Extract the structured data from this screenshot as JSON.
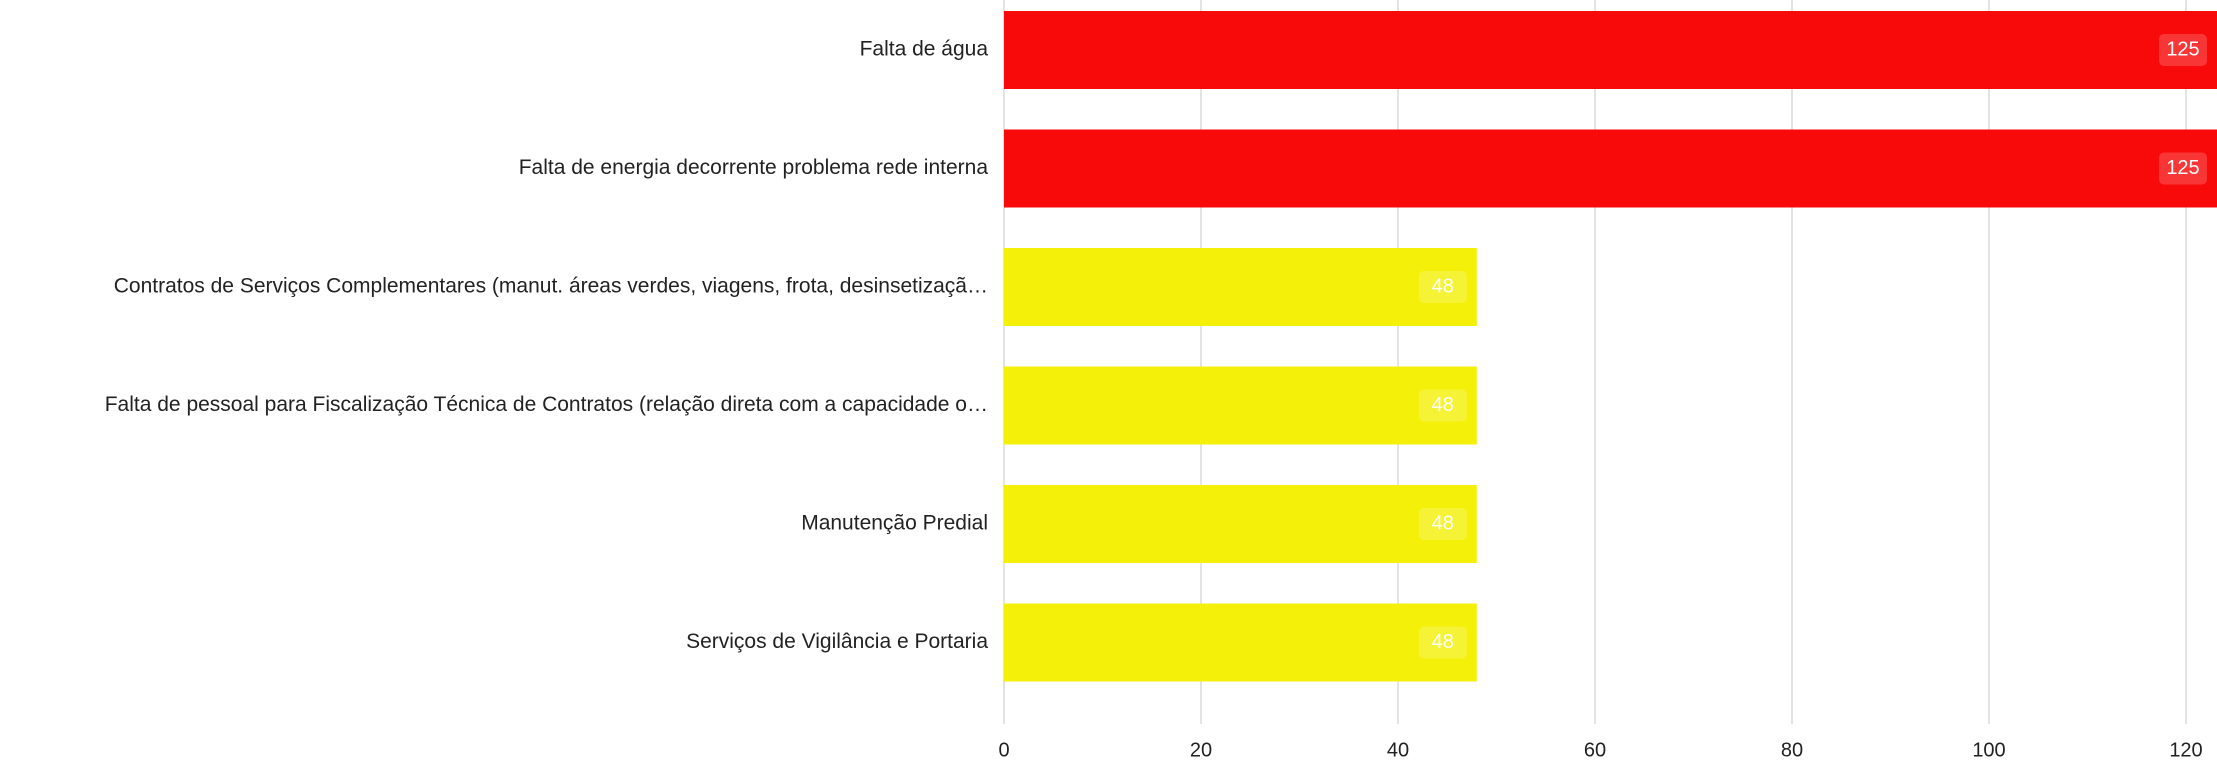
{
  "chart_data": {
    "type": "bar",
    "orientation": "horizontal",
    "categories": [
      "Falta de água",
      "Falta de energia decorrente problema rede interna",
      "Contratos de Serviços Complementares (manut. áreas verdes, viagens, frota, desinsetizaçã…",
      "Falta de pessoal para Fiscalização Técnica de Contratos (relação direta com a capacidade o…",
      "Manutenção Predial",
      "Serviços de Vigilância e Portaria"
    ],
    "values": [
      125,
      125,
      48,
      48,
      48,
      48
    ],
    "colors": [
      "#f80a0a",
      "#f80a0a",
      "#f5f00a",
      "#f5f00a",
      "#f5f00a",
      "#f5f00a"
    ],
    "xlim": [
      0,
      120
    ],
    "xticks": [
      0,
      20,
      40,
      60,
      80,
      100,
      120
    ],
    "grid": true
  }
}
